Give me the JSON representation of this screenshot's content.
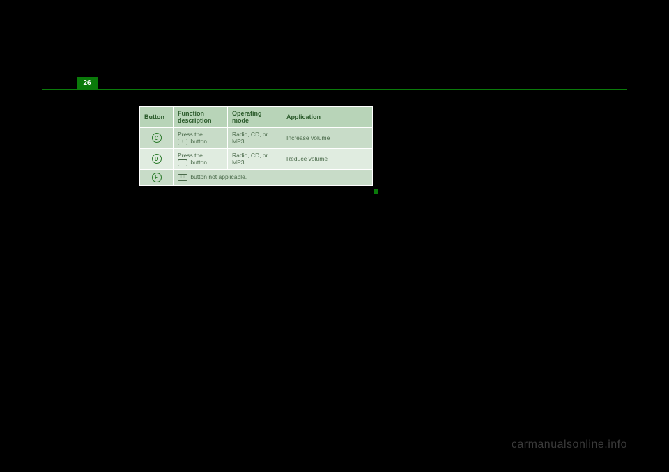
{
  "page": {
    "number": "26"
  },
  "table": {
    "headers": [
      "Button",
      "Function description",
      "Operating mode",
      "Application"
    ],
    "rows": [
      {
        "badge": "C",
        "func_prefix": "Press the",
        "func_suffix": " button",
        "mode": "Radio, CD, or MP3",
        "app": "Increase volume",
        "bg": "row-dark"
      },
      {
        "badge": "D",
        "func_prefix": "Press the",
        "func_suffix": " button",
        "mode": "Radio, CD, or MP3",
        "app": "Reduce volume",
        "bg": "row-light"
      }
    ],
    "footer": {
      "badge": "F",
      "text": " button not applicable."
    }
  },
  "watermark": "carmanualsonline.info",
  "styling": {
    "accent_color": "#0a7a0a",
    "header_bg": "#b8d4b8",
    "row_dark_bg": "#c8dcc8",
    "row_light_bg": "#e0ece0",
    "text_color": "#4a6a4a",
    "header_text_color": "#2a5a2a",
    "badge_border": "#2a7a2a",
    "page_bg": "#000000",
    "font_size_header": 9,
    "font_size_cell": 8.5
  }
}
